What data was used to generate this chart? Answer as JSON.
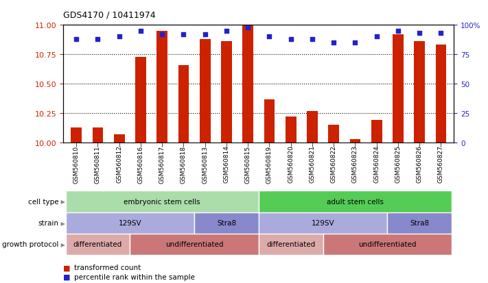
{
  "title": "GDS4170 / 10411974",
  "samples": [
    "GSM560810",
    "GSM560811",
    "GSM560812",
    "GSM560816",
    "GSM560817",
    "GSM560818",
    "GSM560813",
    "GSM560814",
    "GSM560815",
    "GSM560819",
    "GSM560820",
    "GSM560821",
    "GSM560822",
    "GSM560823",
    "GSM560824",
    "GSM560825",
    "GSM560826",
    "GSM560827"
  ],
  "bar_values": [
    10.13,
    10.13,
    10.07,
    10.73,
    10.95,
    10.66,
    10.88,
    10.86,
    11.0,
    10.37,
    10.22,
    10.27,
    10.15,
    10.03,
    10.19,
    10.92,
    10.86,
    10.83
  ],
  "percentile_values": [
    88,
    88,
    90,
    95,
    92,
    92,
    92,
    95,
    98,
    90,
    88,
    88,
    85,
    85,
    90,
    95,
    93,
    93
  ],
  "ylim_left": [
    10.0,
    11.0
  ],
  "ylim_right": [
    0,
    100
  ],
  "yticks_left": [
    10.0,
    10.25,
    10.5,
    10.75,
    11.0
  ],
  "yticks_right": [
    0,
    25,
    50,
    75,
    100
  ],
  "bar_color": "#cc2200",
  "percentile_color": "#2222cc",
  "cell_type_segs": [
    {
      "start": 0,
      "end": 9,
      "color": "#aaddaa",
      "label": "embryonic stem cells"
    },
    {
      "start": 9,
      "end": 18,
      "color": "#55cc55",
      "label": "adult stem cells"
    }
  ],
  "strain_segs": [
    {
      "start": 0,
      "end": 6,
      "color": "#aaaadd",
      "label": "129SV"
    },
    {
      "start": 6,
      "end": 9,
      "color": "#8888cc",
      "label": "Stra8"
    },
    {
      "start": 9,
      "end": 15,
      "color": "#aaaadd",
      "label": "129SV"
    },
    {
      "start": 15,
      "end": 18,
      "color": "#8888cc",
      "label": "Stra8"
    }
  ],
  "growth_segs": [
    {
      "start": 0,
      "end": 3,
      "color": "#ddaaaa",
      "label": "differentiated"
    },
    {
      "start": 3,
      "end": 9,
      "color": "#cc7777",
      "label": "undifferentiated"
    },
    {
      "start": 9,
      "end": 12,
      "color": "#ddaaaa",
      "label": "differentiated"
    },
    {
      "start": 12,
      "end": 18,
      "color": "#cc7777",
      "label": "undifferentiated"
    }
  ],
  "row_labels": [
    "cell type",
    "strain",
    "growth protocol"
  ],
  "legend_items": [
    {
      "color": "#cc2200",
      "label": "transformed count"
    },
    {
      "color": "#2222cc",
      "label": "percentile rank within the sample"
    }
  ]
}
